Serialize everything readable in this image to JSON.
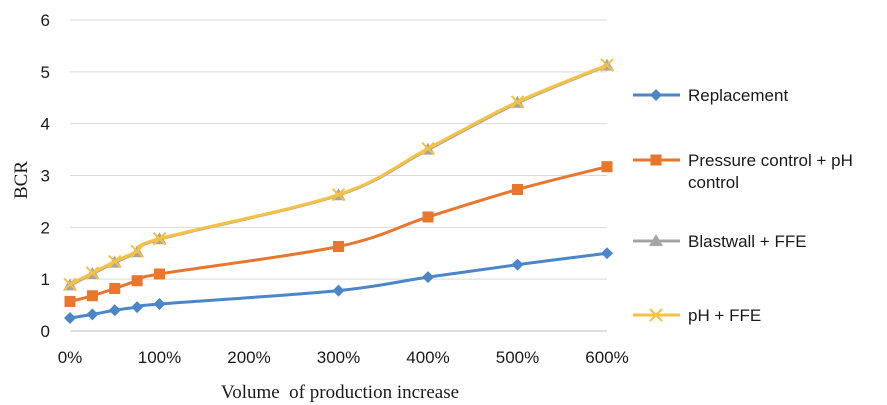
{
  "chart_data": {
    "type": "line",
    "xlabel": "Volume  of production increase",
    "ylabel": "BCR",
    "x": [
      0,
      25,
      50,
      75,
      100,
      300,
      400,
      500,
      600
    ],
    "x_ticks": [
      0,
      100,
      200,
      300,
      400,
      500,
      600
    ],
    "x_tick_labels": [
      "0%",
      "100%",
      "200%",
      "300%",
      "400%",
      "500%",
      "600%"
    ],
    "xlim": [
      0,
      600
    ],
    "ylim": [
      0,
      6
    ],
    "y_ticks": [
      0,
      1,
      2,
      3,
      4,
      5,
      6
    ],
    "y_tick_labels": [
      "0",
      "1",
      "2",
      "3",
      "4",
      "5",
      "6"
    ],
    "grid": "horizontal",
    "legend_position": "right",
    "series": [
      {
        "name": "Replacement",
        "color": "#4a86c8",
        "marker": "diamond",
        "values": [
          0.25,
          0.32,
          0.4,
          0.46,
          0.52,
          0.78,
          1.04,
          1.28,
          1.5
        ]
      },
      {
        "name": "Pressure control + pH control",
        "color": "#e8762d",
        "marker": "square",
        "values": [
          0.57,
          0.68,
          0.82,
          0.97,
          1.1,
          1.63,
          2.2,
          2.73,
          3.17
        ]
      },
      {
        "name": "Blastwall + FFE",
        "color": "#a5a5a5",
        "marker": "triangle",
        "values": [
          0.88,
          1.1,
          1.32,
          1.52,
          1.77,
          2.62,
          3.5,
          4.4,
          5.12
        ]
      },
      {
        "name": "pH + FFE",
        "color": "#f5c242",
        "marker": "x",
        "values": [
          0.9,
          1.12,
          1.34,
          1.54,
          1.78,
          2.63,
          3.52,
          4.42,
          5.13
        ]
      }
    ]
  }
}
